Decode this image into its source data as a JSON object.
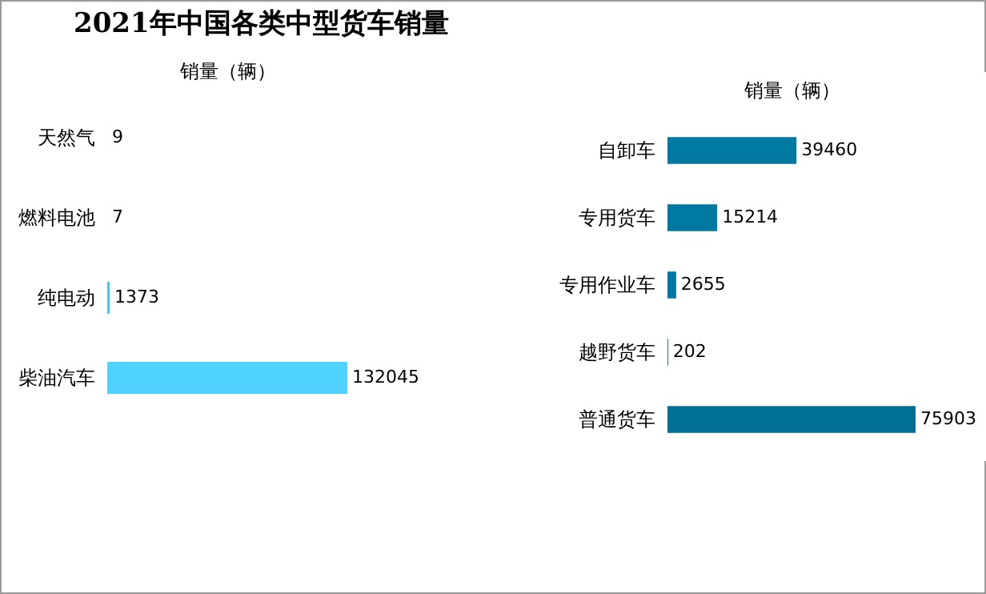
{
  "chart_data": [
    {
      "type": "bar",
      "orientation": "horizontal",
      "title": "2021年中国各类中型货车销量",
      "xlabel": "销量（辆）",
      "categories": [
        "天然气",
        "燃料电池",
        "纯电动",
        "柴油汽车"
      ],
      "values": [
        9,
        7,
        1373,
        132045
      ],
      "colors": [
        "#31849b",
        "#31849b",
        "#4bc6e8",
        "#4fd2ff"
      ],
      "data_labels": true,
      "grid": false
    },
    {
      "type": "bar",
      "orientation": "horizontal",
      "xlabel": "销量（辆）",
      "categories": [
        "自卸车",
        "专用货车",
        "专用作业车",
        "越野货车",
        "普通货车"
      ],
      "values": [
        39460,
        15214,
        2655,
        202,
        75903
      ],
      "colors": [
        "#0079a2",
        "#0079a2",
        "#0079a2",
        "#005a7a",
        "#006f94"
      ],
      "data_labels": true,
      "grid": false
    }
  ]
}
